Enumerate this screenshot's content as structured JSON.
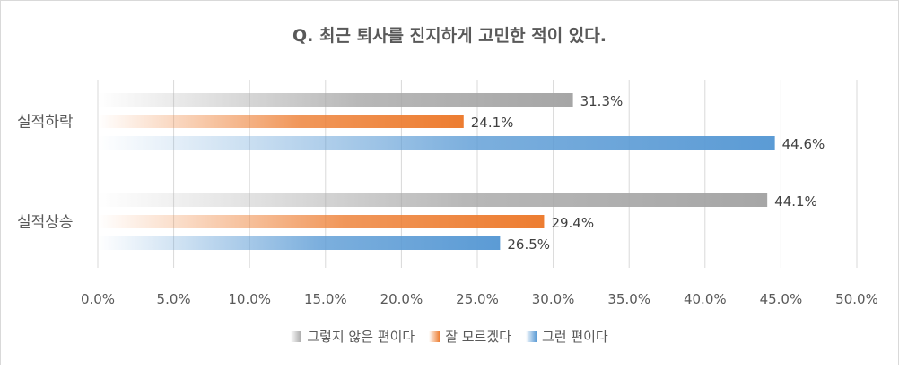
{
  "chart_data": {
    "type": "bar",
    "orientation": "horizontal",
    "title": "Q. 최근 퇴사를 진지하게 고민한 적이 있다.",
    "categories": [
      "실적하락",
      "실적상승"
    ],
    "series": [
      {
        "name": "그렇지 않은 편이다",
        "color": "#a6a6a6",
        "values": [
          31.3,
          44.1
        ],
        "labels": [
          "31.3%",
          "44.1%"
        ]
      },
      {
        "name": "잘 모르겠다",
        "color": "#ed7d31",
        "values": [
          24.1,
          29.4
        ],
        "labels": [
          "24.1%",
          "29.4%"
        ]
      },
      {
        "name": "그런 편이다",
        "color": "#5b9bd5",
        "values": [
          44.6,
          26.5
        ],
        "labels": [
          "44.6%",
          "26.5%"
        ]
      }
    ],
    "xlim": [
      0,
      50
    ],
    "xticks": [
      "0.0%",
      "5.0%",
      "10.0%",
      "15.0%",
      "20.0%",
      "25.0%",
      "30.0%",
      "35.0%",
      "40.0%",
      "45.0%",
      "50.0%"
    ],
    "bar_fill": "gradient",
    "grid": true,
    "legend": "bottom"
  }
}
